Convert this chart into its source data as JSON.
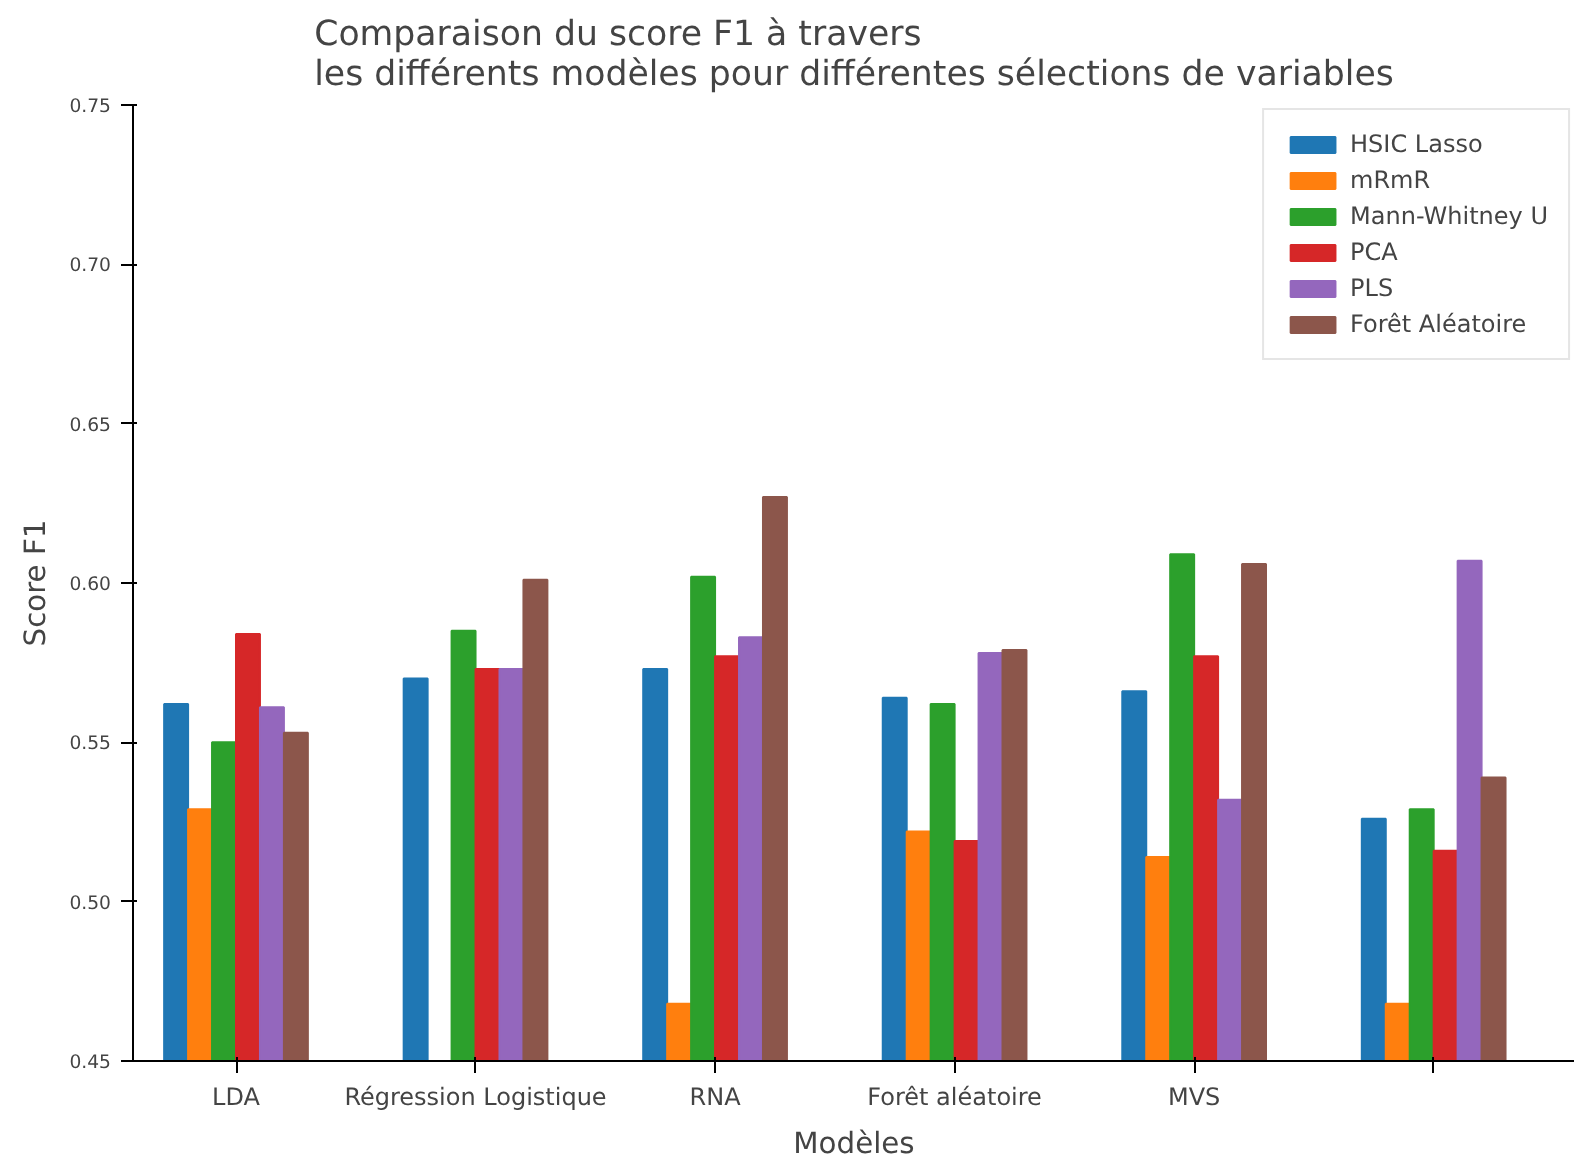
{
  "chart_data": {
    "type": "bar",
    "title": "Comparaison du score F1 à travers\nles différents modèles pour différentes sélections de variables",
    "xlabel": "Modèles",
    "ylabel": "Score F1",
    "categories": [
      "LDA",
      "Régression Logistique",
      "RNA",
      "Forêt aléatoire",
      "MVS",
      null
    ],
    "series": [
      {
        "name": "HSIC Lasso",
        "color": "#1f77b4",
        "values": [
          0.562,
          0.57,
          0.573,
          0.564,
          0.566,
          0.526
        ]
      },
      {
        "name": "mRmR",
        "color": "#ff7f0e",
        "values": [
          0.529,
          null,
          0.468,
          0.522,
          0.514,
          0.468
        ]
      },
      {
        "name": "Mann-Whitney U",
        "color": "#2ca02c",
        "values": [
          0.55,
          0.585,
          0.602,
          0.562,
          0.609,
          0.529
        ]
      },
      {
        "name": "PCA",
        "color": "#d62728",
        "values": [
          0.584,
          0.573,
          0.577,
          0.519,
          0.577,
          0.516
        ]
      },
      {
        "name": "PLS",
        "color": "#9467bd",
        "values": [
          0.561,
          0.573,
          0.583,
          0.578,
          0.532,
          0.607
        ]
      },
      {
        "name": "Forêt Aléatoire",
        "color": "#8c564b",
        "values": [
          0.553,
          0.601,
          0.627,
          0.579,
          0.606,
          0.539
        ]
      }
    ],
    "ylim": [
      0.45,
      0.75
    ],
    "yticks": [
      0.45,
      {
        "value": 0.5,
        "label": "0.50"
      },
      0.55,
      {
        "value": 0.6,
        "label": "0.60"
      },
      0.65,
      {
        "value": 0.7,
        "label": "0.70"
      },
      0.75
    ],
    "grid": false,
    "legend": "top right"
  }
}
